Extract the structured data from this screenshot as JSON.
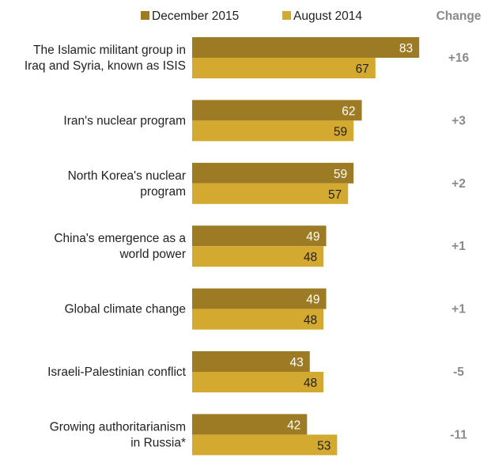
{
  "chart_data": {
    "type": "bar",
    "orientation": "horizontal",
    "categories": [
      [
        "The Islamic militant group in",
        "Iraq and Syria, known as ISIS"
      ],
      [
        "Iran's nuclear program"
      ],
      [
        "North Korea's nuclear",
        "program"
      ],
      [
        "China's emergence as a",
        "world power"
      ],
      [
        "Global climate change"
      ],
      [
        "Israeli-Palestinian conflict"
      ],
      [
        "Growing authoritarianism",
        "in Russia*"
      ]
    ],
    "series": [
      {
        "name": "December 2015",
        "color": "#9c7b24",
        "label_color": "#ffffff",
        "values": [
          83,
          62,
          59,
          49,
          49,
          43,
          42
        ]
      },
      {
        "name": "August 2014",
        "color": "#d4a930",
        "label_color": "#222222",
        "values": [
          67,
          59,
          57,
          48,
          48,
          48,
          53
        ]
      }
    ],
    "change_header": "Change",
    "changes": [
      "+16",
      "+3",
      "+2",
      "+1",
      "+1",
      "-5",
      "-11"
    ],
    "xlim": [
      0,
      100
    ],
    "grid": false,
    "legend_position": "top"
  }
}
